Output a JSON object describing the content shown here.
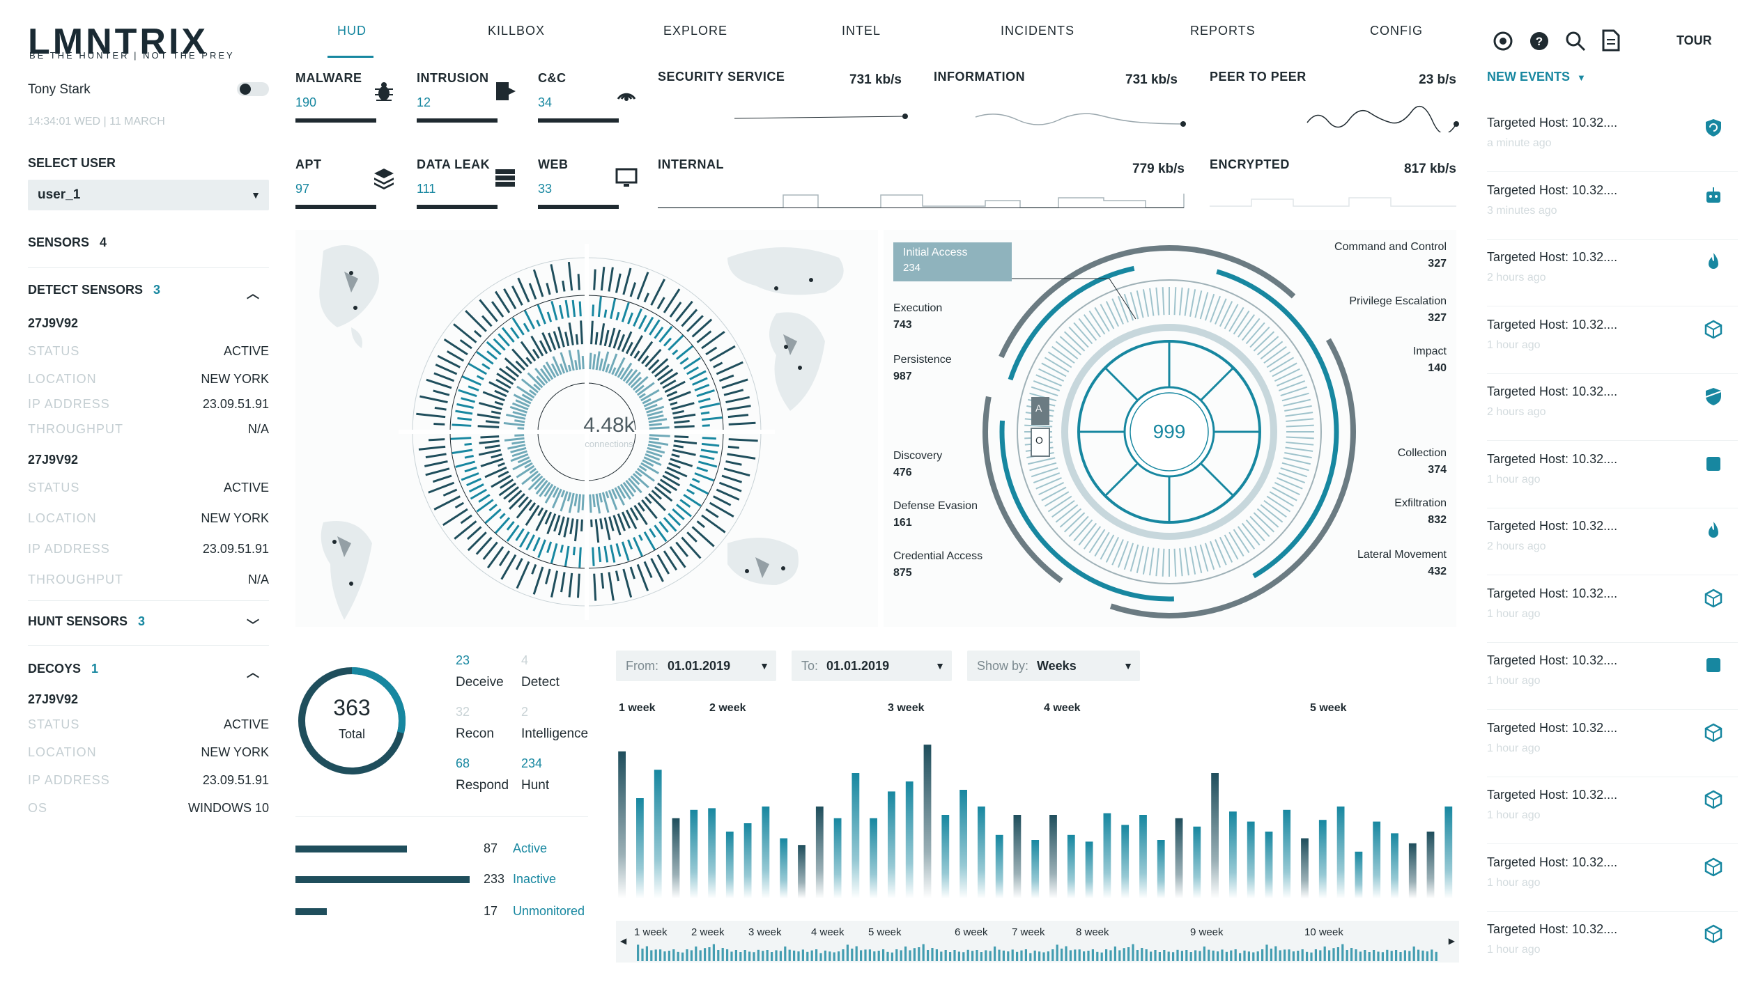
{
  "brand": {
    "logo": "LMNTRIX",
    "tagline": "BE THE HUNTER | NOT THE PREY"
  },
  "user": {
    "name": "Tony Stark",
    "datetime": "14:34:01 WED",
    "date": "11 MARCH"
  },
  "select_user": {
    "label": "SELECT USER",
    "value": "user_1"
  },
  "sensors": {
    "label": "SENSORS",
    "count": "4"
  },
  "detect_sensors": {
    "label": "DETECT SENSORS",
    "count": "3",
    "items": [
      {
        "id": "27J9V92",
        "status_k": "STATUS",
        "status": "ACTIVE",
        "location_k": "LOCATION",
        "location": "NEW YORK",
        "ip_k": "IP ADDRESS",
        "ip": "23.09.51.91",
        "tp_k": "THROUGHPUT",
        "tp": "N/A"
      },
      {
        "id": "27J9V92",
        "status_k": "STATUS",
        "status": "ACTIVE",
        "location_k": "LOCATION",
        "location": "NEW YORK",
        "ip_k": "IP ADDRESS",
        "ip": "23.09.51.91",
        "tp_k": "THROUGHPUT",
        "tp": "N/A"
      }
    ]
  },
  "hunt_sensors": {
    "label": "HUNT SENSORS",
    "count": "3"
  },
  "decoys": {
    "label": "DECOYS",
    "count": "1",
    "item": {
      "id": "27J9V92",
      "status_k": "STATUS",
      "status": "ACTIVE",
      "location_k": "LOCATION",
      "location": "NEW YORK",
      "ip_k": "IP ADDRESS",
      "ip": "23.09.51.91",
      "os_k": "OS",
      "os": "WINDOWS 10"
    }
  },
  "nav": [
    "HUD",
    "KILLBOX",
    "EXPLORE",
    "INTEL",
    "INCIDENTS",
    "REPORTS",
    "CONFIG"
  ],
  "toolbar": {
    "tour": "TOUR",
    "icons": [
      "settings-icon",
      "help-icon",
      "search-icon",
      "document-icon"
    ]
  },
  "kpis": [
    {
      "label": "MALWARE",
      "value": "190",
      "icon": "bug-icon"
    },
    {
      "label": "INTRUSION",
      "value": "12",
      "icon": "door-icon"
    },
    {
      "label": "C&C",
      "value": "34",
      "icon": "signal-icon"
    },
    {
      "label": "APT",
      "value": "97",
      "icon": "layers-icon"
    },
    {
      "label": "DATA LEAK",
      "value": "111",
      "icon": "database-icon"
    },
    {
      "label": "WEB",
      "value": "33",
      "icon": "monitor-icon"
    }
  ],
  "traffic": [
    {
      "label": "SECURITY SERVICE",
      "rate": "731 kb/s"
    },
    {
      "label": "INFORMATION",
      "rate": "731 kb/s"
    },
    {
      "label": "PEER TO PEER",
      "rate": "23 b/s"
    },
    {
      "label": "INTERNAL",
      "rate": "779 kb/s"
    },
    {
      "label": "ENCRYPTED",
      "rate": "817 kb/s"
    }
  ],
  "radial": {
    "center": "4.48k",
    "sub": "connections"
  },
  "mitre": {
    "center": "999",
    "left": [
      {
        "label": "Initial Access",
        "value": "234"
      },
      {
        "label": "Execution",
        "value": "743"
      },
      {
        "label": "Persistence",
        "value": "987"
      },
      {
        "label": "Discovery",
        "value": "476"
      },
      {
        "label": "Defense Evasion",
        "value": "161"
      },
      {
        "label": "Credential Access",
        "value": "875"
      }
    ],
    "right": [
      {
        "label": "Command and Control",
        "value": "327"
      },
      {
        "label": "Privilege Escalation",
        "value": "327"
      },
      {
        "label": "Impact",
        "value": "140"
      },
      {
        "label": "Collection",
        "value": "374"
      },
      {
        "label": "Exfiltration",
        "value": "832"
      },
      {
        "label": "Lateral Movement",
        "value": "432"
      }
    ],
    "ring_letters": [
      "A",
      "O"
    ]
  },
  "total": {
    "value": "363",
    "label": "Total"
  },
  "stats": [
    {
      "value": "23",
      "label": "Deceive",
      "dim": false
    },
    {
      "value": "4",
      "label": "Detect",
      "dim": true
    },
    {
      "value": "32",
      "label": "Recon",
      "dim": true
    },
    {
      "value": "2",
      "label": "Intelligence",
      "dim": true
    },
    {
      "value": "68",
      "label": "Respond",
      "dim": false
    },
    {
      "value": "234",
      "label": "Hunt",
      "dim": false
    }
  ],
  "status_bars": [
    {
      "value": "87",
      "label": "Active",
      "fraction": 0.64
    },
    {
      "value": "233",
      "label": "Inactive",
      "fraction": 1.0
    },
    {
      "value": "17",
      "label": "Unmonitored",
      "fraction": 0.18
    }
  ],
  "filters": {
    "from_label": "From:",
    "from_value": "01.01.2019",
    "to_label": "To:",
    "to_value": "01.01.2019",
    "show_label": "Show by:",
    "show_value": "Weeks"
  },
  "chart_data": {
    "type": "bar",
    "week_labels": [
      "1 week",
      "2 week",
      "3 week",
      "4 week",
      "5 week"
    ],
    "values": [
      0.88,
      0.6,
      0.77,
      0.48,
      0.53,
      0.54,
      0.4,
      0.45,
      0.55,
      0.36,
      0.32,
      0.55,
      0.48,
      0.75,
      0.48,
      0.64,
      0.7,
      0.92,
      0.5,
      0.65,
      0.55,
      0.38,
      0.5,
      0.35,
      0.5,
      0.38,
      0.34,
      0.51,
      0.44,
      0.5,
      0.35,
      0.48,
      0.43,
      0.75,
      0.52,
      0.46,
      0.4,
      0.53,
      0.36,
      0.47,
      0.55,
      0.28,
      0.46,
      0.39,
      0.33,
      0.4,
      0.55
    ],
    "timeline_labels": [
      "1 week",
      "2 week",
      "3 week",
      "4 week",
      "5 week",
      "6 week",
      "7 week",
      "8 week",
      "9 week",
      "10 week"
    ]
  },
  "events": {
    "header": "NEW EVENTS",
    "items": [
      {
        "title": "Targeted Host: 10.32....",
        "time": "a minute ago",
        "icon": "shield-refresh-icon"
      },
      {
        "title": "Targeted Host: 10.32....",
        "time": "3 minutes ago",
        "icon": "robot-icon"
      },
      {
        "title": "Targeted Host: 10.32....",
        "time": "2 hours ago",
        "icon": "flame-icon"
      },
      {
        "title": "Targeted Host: 10.32....",
        "time": "1 hour ago",
        "icon": "cube-icon"
      },
      {
        "title": "Targeted Host: 10.32....",
        "time": "2 hours ago",
        "icon": "shield-icon"
      },
      {
        "title": "Targeted Host: 10.32....",
        "time": "1 hour ago",
        "icon": "square-icon"
      },
      {
        "title": "Targeted Host: 10.32....",
        "time": "2 hours ago",
        "icon": "flame-icon"
      },
      {
        "title": "Targeted Host: 10.32....",
        "time": "1 hour ago",
        "icon": "cube-icon"
      },
      {
        "title": "Targeted Host: 10.32....",
        "time": "1 hour ago",
        "icon": "square-icon"
      },
      {
        "title": "Targeted Host: 10.32....",
        "time": "1 hour ago",
        "icon": "cube-icon"
      },
      {
        "title": "Targeted Host: 10.32....",
        "time": "1 hour ago",
        "icon": "cube-icon"
      },
      {
        "title": "Targeted Host: 10.32....",
        "time": "1 hour ago",
        "icon": "cube-icon"
      },
      {
        "title": "Targeted Host: 10.32....",
        "time": "1 hour ago",
        "icon": "cube-icon"
      }
    ]
  },
  "colors": {
    "accent": "#1787a0",
    "dark": "#1f2a30",
    "muted": "#bfc9cd"
  }
}
